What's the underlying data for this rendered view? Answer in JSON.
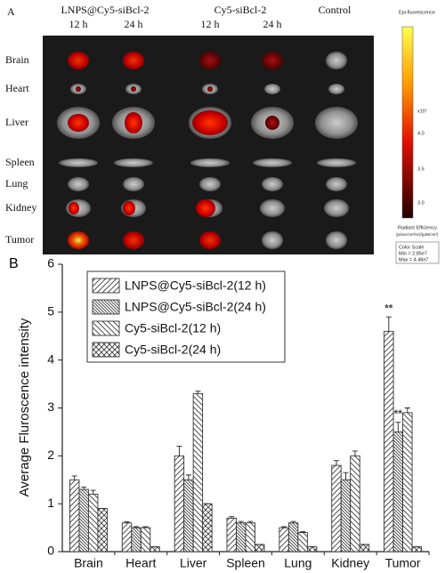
{
  "panel_a": {
    "label": "A",
    "groups": [
      {
        "name": "LNPS@Cy5-siBcl-2",
        "times": [
          "12 h",
          "24 h"
        ]
      },
      {
        "name": "Cy5-siBcl-2",
        "times": [
          "12 h",
          "24 h"
        ]
      },
      {
        "name": "Control"
      }
    ],
    "organs": [
      "Brain",
      "Heart",
      "Liver",
      "Spleen",
      "Lung",
      "Kidney",
      "Tumor"
    ],
    "scale": {
      "title": "Epi-fluorescence",
      "multiplier": "x10⁷",
      "ticks": [
        "4.0",
        "3.5",
        "3.0"
      ],
      "unit_title": "Radiant Efficiency",
      "unit": "(p/sec/cm²/sr)/(µW/cm²)",
      "box_title": "Color Scale",
      "min": "Min = 2.85e7",
      "max": "Max = 4.48e7"
    }
  },
  "chart_data": {
    "type": "bar",
    "label": "B",
    "y_label": "Average Fluroscence intensity",
    "categories": [
      "Brain",
      "Heart",
      "Liver",
      "Spleen",
      "Lung",
      "Kidney",
      "Tumor"
    ],
    "series": [
      {
        "name": "LNPS@Cy5-siBcl-2(12 h)",
        "color": "#333333",
        "hatch": "/",
        "values": [
          1.5,
          0.6,
          2.0,
          0.7,
          0.5,
          1.8,
          4.6
        ],
        "errors": [
          0.08,
          0.02,
          0.2,
          0.03,
          0.02,
          0.1,
          0.3
        ]
      },
      {
        "name": "LNPS@Cy5-siBcl-2(24 h)",
        "color": "#333333",
        "hatch": "\\\\",
        "values": [
          1.3,
          0.5,
          1.5,
          0.6,
          0.6,
          1.5,
          2.5
        ],
        "errors": [
          0.05,
          0.02,
          0.1,
          0.03,
          0.03,
          0.15,
          0.2
        ]
      },
      {
        "name": "Cy5-siBcl-2(12 h)",
        "color": "#333333",
        "hatch": "\\",
        "values": [
          1.2,
          0.5,
          3.3,
          0.6,
          0.4,
          2.0,
          2.9
        ],
        "errors": [
          0.08,
          0.02,
          0.05,
          0.03,
          0.02,
          0.1,
          0.1
        ]
      },
      {
        "name": "Cy5-siBcl-2(24 h)",
        "color": "#333333",
        "hatch": "x",
        "values": [
          0.9,
          0.1,
          1.0,
          0.15,
          0.1,
          0.15,
          0.1
        ],
        "errors": [
          0.0,
          0.0,
          0.0,
          0.0,
          0.0,
          0.0,
          0.0
        ]
      }
    ],
    "annotations": [
      "**",
      "**"
    ],
    "ylim": [
      0,
      6
    ],
    "yticks": [
      0,
      1,
      2,
      3,
      4,
      5,
      6
    ],
    "legend": "upper left"
  }
}
